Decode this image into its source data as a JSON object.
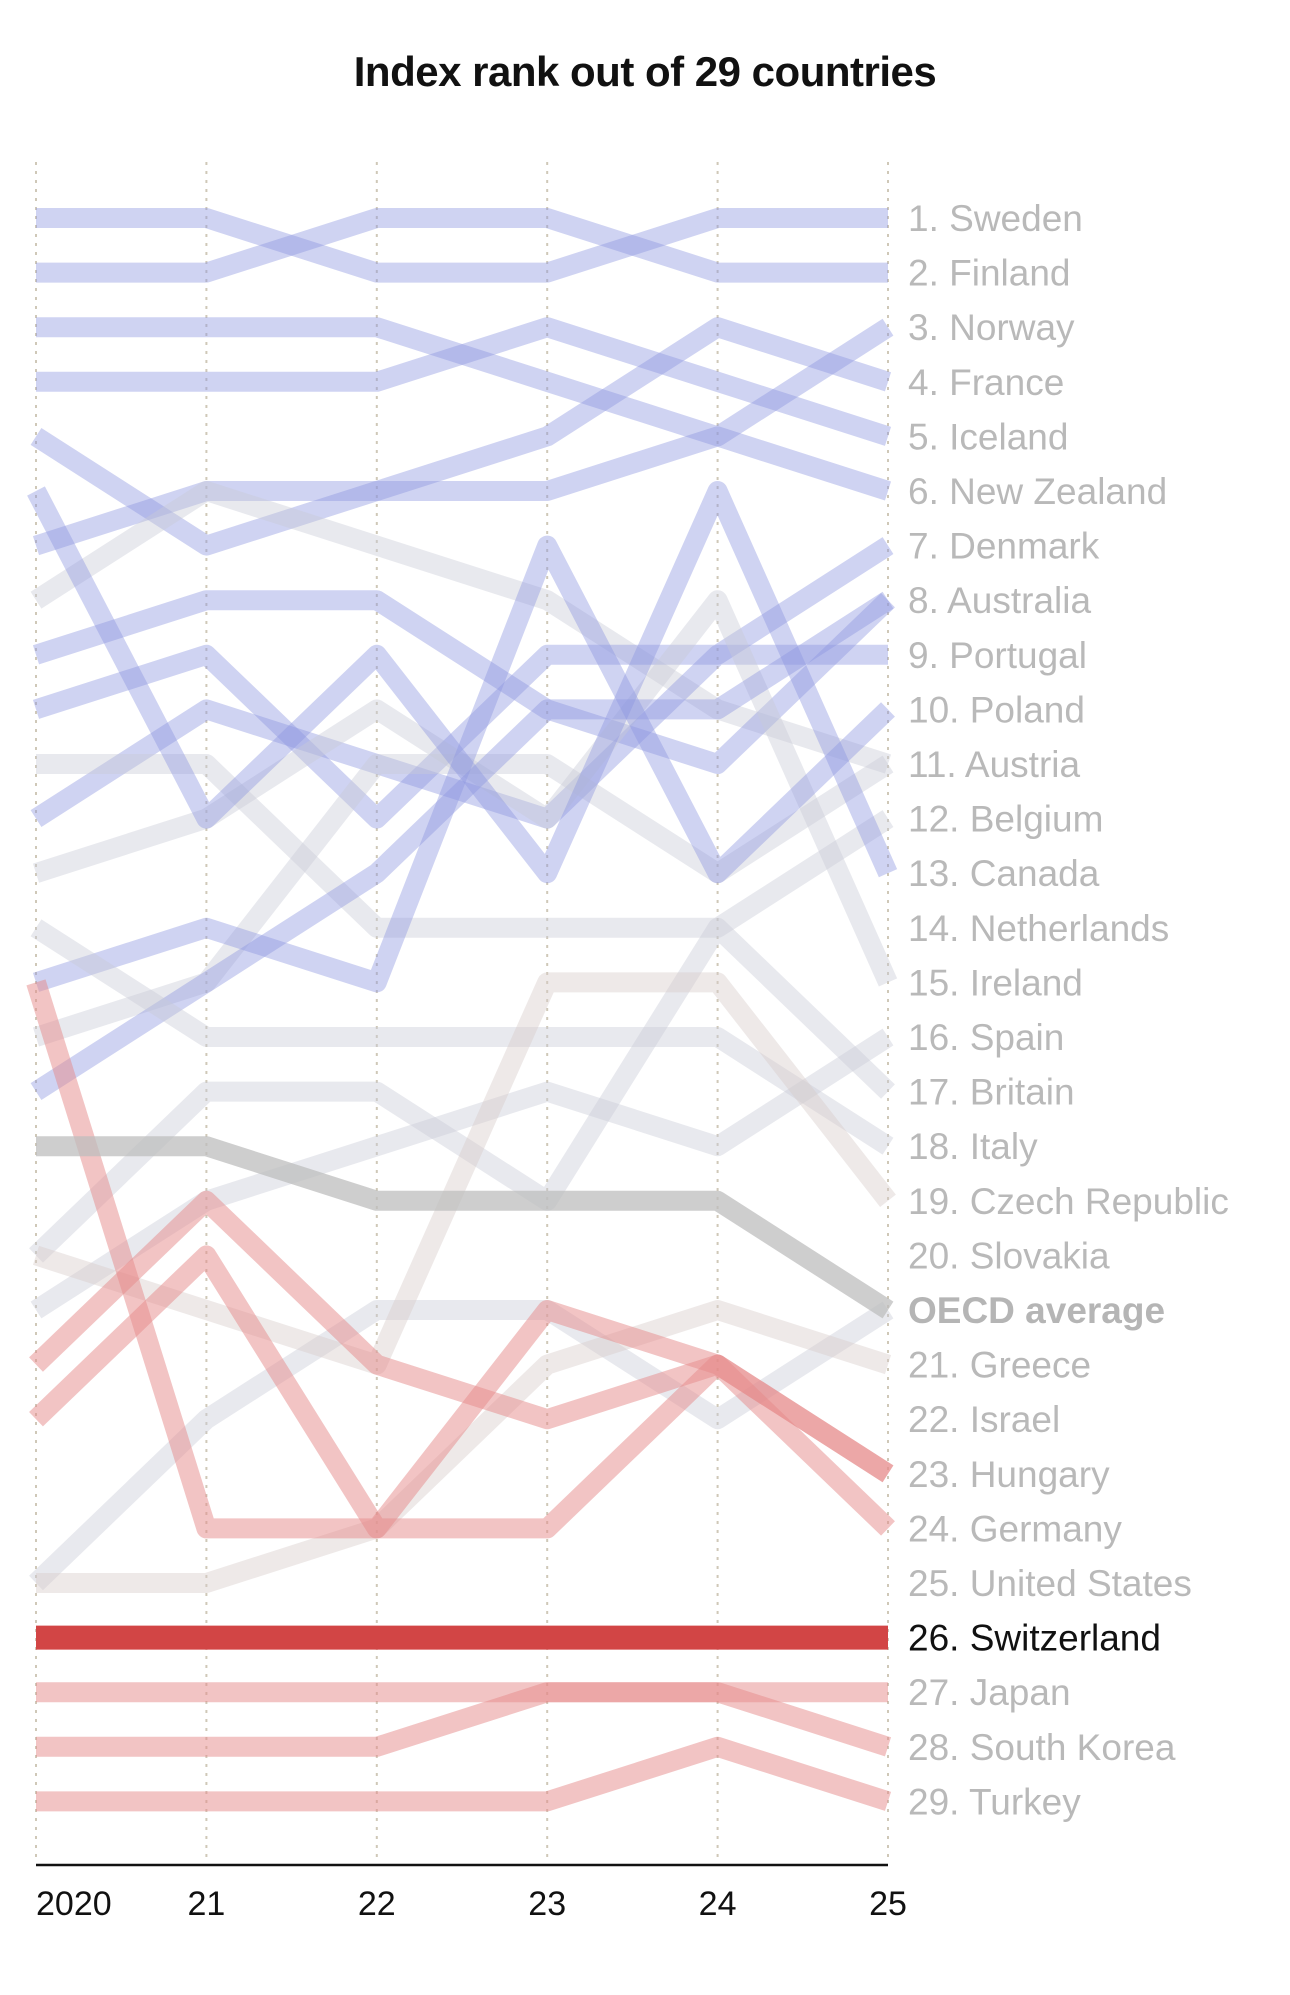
{
  "chart_data": {
    "type": "line",
    "title": "Index rank out of 29 countries",
    "xlabel": "",
    "ylabel": "",
    "x": [
      2020,
      2021,
      2022,
      2023,
      2024,
      2025
    ],
    "tick_labels": [
      "2020",
      "21",
      "22",
      "23",
      "24",
      "25"
    ],
    "ylim": [
      1,
      30
    ],
    "grid": "vertical dotted",
    "colors": {
      "blue": "#8c97e0",
      "grey": "#c8cbd6",
      "warm_grey": "#d7cbc8",
      "red": "#e58a8a",
      "highlight": "#d24545",
      "average": "#bdbdbd"
    },
    "series": [
      {
        "name": "Sweden",
        "label": "1. Sweden",
        "color": "blue",
        "values": [
          1,
          1,
          2,
          2,
          1,
          1
        ]
      },
      {
        "name": "Finland",
        "label": "2. Finland",
        "color": "blue",
        "values": [
          2,
          2,
          1,
          1,
          2,
          2
        ]
      },
      {
        "name": "Norway",
        "label": "3. Norway",
        "color": "blue",
        "values": [
          3,
          3,
          3,
          4,
          5,
          3
        ]
      },
      {
        "name": "France",
        "label": "4. France",
        "color": "blue",
        "values": [
          4,
          4,
          4,
          3,
          4,
          5
        ]
      },
      {
        "name": "Iceland",
        "label": "5. Iceland",
        "color": "blue",
        "values": [
          7,
          6,
          6,
          5,
          3,
          4
        ]
      },
      {
        "name": "New Zealand",
        "label": "6. New Zealand",
        "color": "blue",
        "values": [
          5,
          7,
          6,
          6,
          5,
          6
        ]
      },
      {
        "name": "Denmark",
        "label": "7. Denmark",
        "color": "grey",
        "values": [
          8,
          6,
          7,
          8,
          10,
          11
        ]
      },
      {
        "name": "Australia",
        "label": "8. Australia",
        "color": "blue",
        "values": [
          9,
          8,
          8,
          10,
          11,
          8
        ]
      },
      {
        "name": "Portugal",
        "label": "9. Portugal",
        "color": "blue",
        "values": [
          10,
          9,
          12,
          9,
          9,
          7
        ]
      },
      {
        "name": "Poland",
        "label": "10. Poland",
        "color": "blue",
        "values": [
          12,
          10,
          11,
          12,
          9,
          9
        ]
      },
      {
        "name": "Austria",
        "label": "11. Austria",
        "color": "grey",
        "values": [
          11,
          11,
          14,
          14,
          14,
          12
        ]
      },
      {
        "name": "Belgium",
        "label": "12. Belgium",
        "color": "grey",
        "values": [
          13,
          12,
          10,
          12,
          8,
          15
        ]
      },
      {
        "name": "Canada",
        "label": "13. Canada",
        "color": "grey",
        "values": [
          16,
          15,
          11,
          11,
          13,
          11
        ]
      },
      {
        "name": "Netherlands",
        "label": "14. Netherlands",
        "color": "blue",
        "values": [
          15,
          14,
          15,
          7,
          13,
          10
        ]
      },
      {
        "name": "Ireland",
        "label": "15. Ireland",
        "color": "blue",
        "values": [
          6,
          12,
          9,
          13,
          6,
          13
        ]
      },
      {
        "name": "Spain",
        "label": "16. Spain",
        "color": "blue",
        "values": [
          17,
          15,
          13,
          10,
          10,
          8
        ]
      },
      {
        "name": "Britain",
        "label": "17. Britain",
        "color": "grey",
        "values": [
          14,
          16,
          16,
          16,
          16,
          18
        ]
      },
      {
        "name": "Italy",
        "label": "18. Italy",
        "color": "grey",
        "values": [
          20,
          17,
          17,
          19,
          14,
          17
        ]
      },
      {
        "name": "Czech Republic",
        "label": "19. Czech Republic",
        "color": "grey",
        "values": [
          21,
          19,
          18,
          17,
          18,
          16
        ]
      },
      {
        "name": "Slovakia",
        "label": "20. Slovakia",
        "color": "grey",
        "values": [
          26,
          23,
          21,
          21,
          23,
          21
        ]
      },
      {
        "name": "OECD average",
        "label": "OECD average",
        "color": "average",
        "values": [
          18,
          18,
          19,
          19,
          19,
          21
        ]
      },
      {
        "name": "Greece",
        "label": "21. Greece",
        "color": "warm_grey",
        "values": [
          20,
          21,
          22,
          15,
          15,
          19
        ]
      },
      {
        "name": "Israel",
        "label": "22. Israel",
        "color": "warm_grey",
        "values": [
          26,
          26,
          25,
          22,
          21,
          22
        ]
      },
      {
        "name": "Hungary",
        "label": "23. Hungary",
        "color": "red",
        "values": [
          23,
          20,
          25,
          25,
          22,
          24
        ]
      },
      {
        "name": "Germany",
        "label": "24. Germany",
        "color": "red",
        "values": [
          22,
          19,
          22,
          23,
          22,
          25
        ]
      },
      {
        "name": "United States",
        "label": "25. United States",
        "color": "red",
        "values": [
          15,
          25,
          25,
          21,
          22,
          24
        ]
      },
      {
        "name": "Switzerland",
        "label": "26. Switzerland",
        "color": "highlight",
        "values": [
          27,
          27,
          27,
          27,
          27,
          27
        ]
      },
      {
        "name": "Japan",
        "label": "27. Japan",
        "color": "red",
        "values": [
          28,
          28,
          28,
          28,
          28,
          28
        ]
      },
      {
        "name": "South Korea",
        "label": "28. South Korea",
        "color": "red",
        "values": [
          29,
          29,
          29,
          28,
          28,
          29
        ]
      },
      {
        "name": "Turkey",
        "label": "29. Turkey",
        "color": "red",
        "values": [
          30,
          30,
          30,
          30,
          29,
          30
        ]
      }
    ]
  }
}
